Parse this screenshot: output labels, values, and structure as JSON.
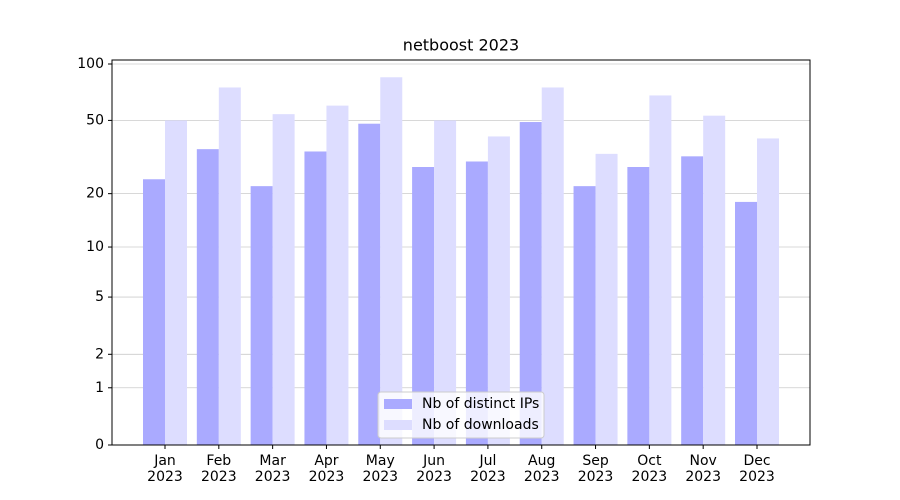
{
  "chart_data": {
    "type": "bar",
    "title": "netboost 2023",
    "categories": [
      "Jan\n2023",
      "Feb\n2023",
      "Mar\n2023",
      "Apr\n2023",
      "May\n2023",
      "Jun\n2023",
      "Jul\n2023",
      "Aug\n2023",
      "Sep\n2023",
      "Oct\n2023",
      "Nov\n2023",
      "Dec\n2023"
    ],
    "series": [
      {
        "name": "Nb of distinct IPs",
        "color": "#aaaaff",
        "values": [
          24,
          35,
          22,
          34,
          48,
          28,
          30,
          49,
          22,
          28,
          32,
          18
        ]
      },
      {
        "name": "Nb of downloads",
        "color": "#ddddff",
        "values": [
          50,
          75,
          54,
          60,
          85,
          50,
          41,
          75,
          33,
          68,
          53,
          40
        ]
      }
    ],
    "yscale": "log1p",
    "ylim": [
      0,
      105
    ],
    "yticks": [
      0,
      1,
      2,
      5,
      10,
      20,
      50,
      100
    ],
    "grid": true,
    "legend": "lower center"
  }
}
